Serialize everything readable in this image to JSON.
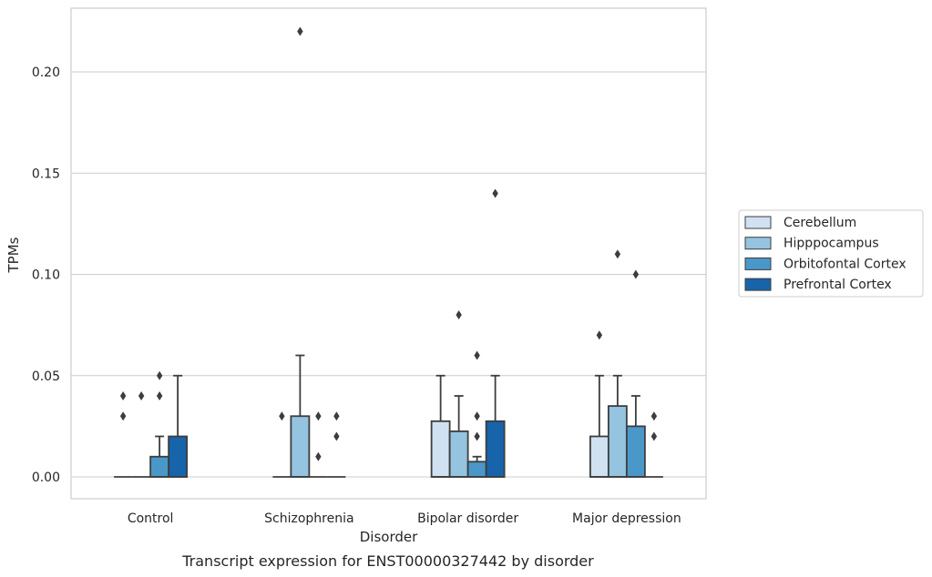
{
  "chart_data": {
    "type": "box",
    "caption": "Transcript expression for ENST00000327442 by disorder",
    "xlabel": "Disorder",
    "ylabel": "TPMs",
    "ylim": [
      -0.011,
      0.232
    ],
    "yticks": [
      0.0,
      0.05,
      0.1,
      0.15,
      0.2
    ],
    "ytick_labels": [
      "0.00",
      "0.05",
      "0.10",
      "0.15",
      "0.20"
    ],
    "grid": "horizontal",
    "legend_position": "right",
    "categories": [
      "Control",
      "Schizophrenia",
      "Bipolar disorder",
      "Major depression"
    ],
    "series": [
      {
        "name": "Cerebellum",
        "color": "#d0e1f2",
        "boxes": [
          {
            "q1": 0,
            "median": 0,
            "q3": 0,
            "whisker_low": 0,
            "whisker_high": 0,
            "outliers": [
              0.03,
              0.04
            ]
          },
          {
            "q1": 0,
            "median": 0,
            "q3": 0,
            "whisker_low": 0,
            "whisker_high": 0,
            "outliers": [
              0.03
            ]
          },
          {
            "q1": 0,
            "median": 0,
            "q3": 0.0275,
            "whisker_low": 0,
            "whisker_high": 0.05,
            "outliers": []
          },
          {
            "q1": 0,
            "median": 0,
            "q3": 0.02,
            "whisker_low": 0,
            "whisker_high": 0.05,
            "outliers": [
              0.07
            ]
          }
        ]
      },
      {
        "name": "Hipppocampus",
        "color": "#94c4df",
        "boxes": [
          {
            "q1": 0,
            "median": 0,
            "q3": 0,
            "whisker_low": 0,
            "whisker_high": 0,
            "outliers": [
              0.04
            ]
          },
          {
            "q1": 0,
            "median": 0,
            "q3": 0.03,
            "whisker_low": 0,
            "whisker_high": 0.06,
            "outliers": [
              0.22
            ]
          },
          {
            "q1": 0,
            "median": 0,
            "q3": 0.0225,
            "whisker_low": 0,
            "whisker_high": 0.04,
            "outliers": [
              0.08
            ]
          },
          {
            "q1": 0,
            "median": 0,
            "q3": 0.035,
            "whisker_low": 0,
            "whisker_high": 0.05,
            "outliers": [
              0.11
            ]
          }
        ]
      },
      {
        "name": "Orbitofontal Cortex",
        "color": "#4a98c9",
        "boxes": [
          {
            "q1": 0,
            "median": 0,
            "q3": 0.01,
            "whisker_low": 0,
            "whisker_high": 0.02,
            "outliers": [
              0.04,
              0.05
            ]
          },
          {
            "q1": 0,
            "median": 0,
            "q3": 0,
            "whisker_low": 0,
            "whisker_high": 0,
            "outliers": [
              0.01,
              0.03
            ]
          },
          {
            "q1": 0,
            "median": 0,
            "q3": 0.0075,
            "whisker_low": 0,
            "whisker_high": 0.01,
            "outliers": [
              0.02,
              0.03,
              0.06
            ]
          },
          {
            "q1": 0,
            "median": 0,
            "q3": 0.025,
            "whisker_low": 0,
            "whisker_high": 0.04,
            "outliers": [
              0.1
            ]
          }
        ]
      },
      {
        "name": "Prefrontal Cortex",
        "color": "#1764ab",
        "boxes": [
          {
            "q1": 0,
            "median": 0,
            "q3": 0.02,
            "whisker_low": 0,
            "whisker_high": 0.05,
            "outliers": []
          },
          {
            "q1": 0,
            "median": 0,
            "q3": 0,
            "whisker_low": 0,
            "whisker_high": 0,
            "outliers": [
              0.02,
              0.03
            ]
          },
          {
            "q1": 0,
            "median": 0,
            "q3": 0.0275,
            "whisker_low": 0,
            "whisker_high": 0.05,
            "outliers": [
              0.14
            ]
          },
          {
            "q1": 0,
            "median": 0,
            "q3": 0,
            "whisker_low": 0,
            "whisker_high": 0,
            "outliers": [
              0.02,
              0.03
            ]
          }
        ]
      }
    ]
  }
}
